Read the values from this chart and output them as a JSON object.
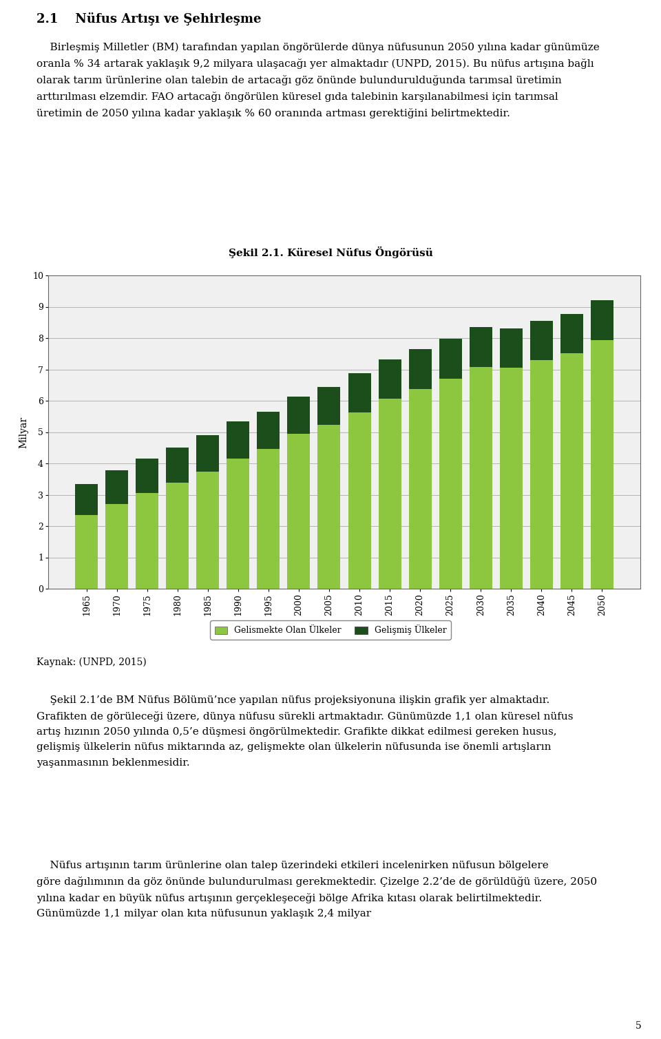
{
  "title": "Şekil 2.1. Küresel Nüfus Öngörüsü",
  "heading": "2.1    Nüfus Artışı ve Şehirleşme",
  "source": "Kaynak: (UNPD, 2015)",
  "years": [
    1965,
    1970,
    1975,
    1980,
    1985,
    1990,
    1995,
    2000,
    2005,
    2010,
    2015,
    2020,
    2025,
    2030,
    2035,
    2040,
    2045,
    2050
  ],
  "developing_countries": [
    2.35,
    2.7,
    3.05,
    3.38,
    3.74,
    4.15,
    4.47,
    4.95,
    5.23,
    5.63,
    6.07,
    6.38,
    6.7,
    7.07,
    7.06,
    7.3,
    7.52,
    7.94
  ],
  "developed_countries": [
    1.0,
    1.07,
    1.1,
    1.13,
    1.17,
    1.18,
    1.18,
    1.18,
    1.21,
    1.24,
    1.25,
    1.26,
    1.27,
    1.28,
    1.24,
    1.25,
    1.26,
    1.26
  ],
  "ylabel": "Milyar",
  "ylim": [
    0,
    10
  ],
  "yticks": [
    0,
    1,
    2,
    3,
    4,
    5,
    6,
    7,
    8,
    9,
    10
  ],
  "legend_developing": "Gelismekte Olan Ülkeler",
  "legend_developed": "Gelişmiş Ülkeler",
  "color_developing": "#8DC63F",
  "color_developed": "#1C4E1C",
  "bar_width": 0.75,
  "background_color": "#FFFFFF",
  "grid_color": "#AAAAAA",
  "chart_bg": "#F0F0F0",
  "title_fontsize": 11,
  "body_fontsize": 11,
  "tick_fontsize": 9,
  "label_fontsize": 10,
  "heading_fontsize": 13,
  "source_fontsize": 10,
  "para1_lines": [
    "    Birleşmiş Milletler (BM) tarafından yapılan öngörülerde dünya nüfusunun 2050 yılına kadar günümüze",
    "oranla % 34 artarak yaklaşık 9,2 milyara ulaşacağı yer almaktadır (UNPD, 2015). Bu nüfus artışına bağlı",
    "olarak tarım ürünlerine olan talebin de artacağı göz önünde bulundurulduğunda tarımsal üretimin",
    "arttırılması elzemdir. FAO artacağı öngörülen küresel gıda talebinin karşılanabilmesi için tarımsal",
    "üretimin de 2050 yılına kadar yaklaşık % 60 oranında artması gerektiğini belirtmektedir."
  ],
  "para2_lines": [
    "    Şekil 2.1’de BM Nüfus Bölümü’nce yapılan nüfus projeksiyonuna ilişkin grafik yer almaktadır.",
    "Grafikten de görüleceği üzere, dünya nüfusu sürekli artmaktadır. Günümüzde 1,1 olan küresel nüfus",
    "artış hızının 2050 yılında 0,5’e düşmesi öngörülmektedir. Grafikte dikkat edilmesi gereken husus,",
    "gelişmiş ülkelerin nüfus miktarında az, gelişmekte olan ülkelerin nüfusunda ise önemli artışların",
    "yaşanmasının beklenmesidir."
  ],
  "para3_lines": [
    "    Nüfus artışının tarım ürünlerine olan talep üzerindeki etkileri incelenirken nüfusun bölgelere",
    "göre dağılımının da göz önünde bulundurulması gerekmektedir. Çizelge 2.2’de de görüldüğü üzere, 2050",
    "yılına kadar en büyük nüfus artışının gerçekleşeceği bölge Afrika kıtası olarak belirtilmektedir.",
    "Günümüzde 1,1 milyar olan kıta nüfusunun yaklaşık 2,4 milyar"
  ]
}
